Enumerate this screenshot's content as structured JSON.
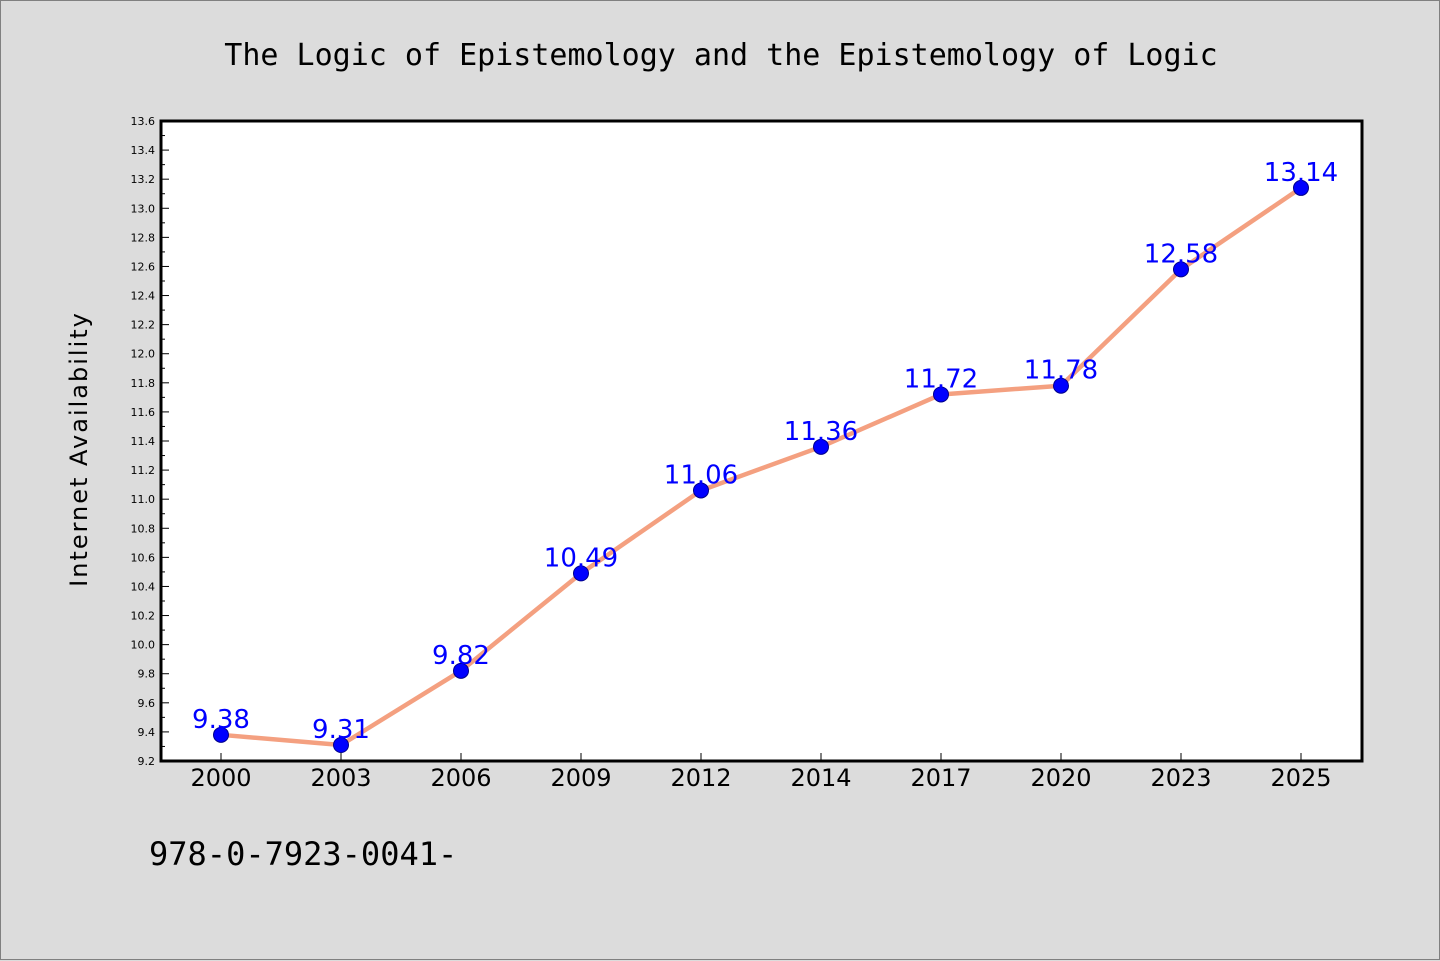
{
  "chart_data": {
    "type": "line",
    "title": "The Logic of Epistemology and the Epistemology of Logic",
    "xlabel": "",
    "ylabel": "Internet Availability",
    "categories": [
      "2000",
      "2003",
      "2006",
      "2009",
      "2012",
      "2014",
      "2017",
      "2020",
      "2023",
      "2025"
    ],
    "series": [
      {
        "values": [
          9.38,
          9.31,
          9.82,
          10.49,
          11.06,
          11.36,
          11.72,
          11.78,
          12.58,
          13.14
        ],
        "data_labels": [
          "9.38",
          "9.31",
          "9.82",
          "10.49",
          "11.06",
          "11.36",
          "11.72",
          "11.78",
          "12.58",
          "13.14"
        ],
        "line_color": "#f4a080",
        "marker_color": "#0000ff"
      }
    ],
    "ylim": [
      9.2,
      13.6
    ],
    "yticks": [
      "9.2",
      "9.4",
      "9.6",
      "9.8",
      "10.0",
      "10.2",
      "10.4",
      "10.6",
      "10.8",
      "11.0",
      "11.2",
      "11.4",
      "11.6",
      "11.8",
      "12.0",
      "12.2",
      "12.4",
      "12.6",
      "12.8",
      "13.0",
      "13.2",
      "13.4",
      "13.6"
    ],
    "grid": false,
    "legend": "none"
  },
  "footer": {
    "isbn": "978-0-7923-0041-"
  },
  "colors": {
    "background": "#dcdcdc",
    "plot_background": "#ffffff",
    "line": "#f4a080",
    "marker": "#0000ff",
    "label": "#0000ff"
  }
}
